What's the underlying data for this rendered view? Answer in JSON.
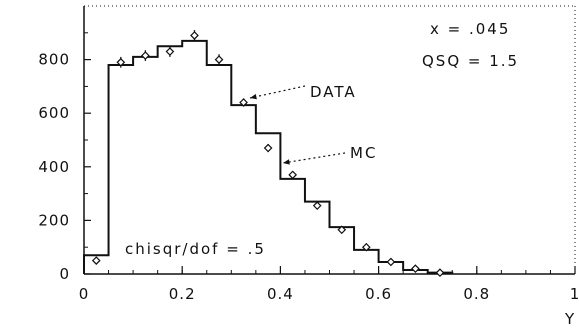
{
  "chart_data": {
    "type": "line",
    "title": "",
    "xlabel": "Y",
    "ylabel": "",
    "xlim": [
      0,
      1
    ],
    "ylim": [
      0,
      1000
    ],
    "x_ticks": [
      0,
      0.2,
      0.4,
      0.6,
      0.8,
      1
    ],
    "x_tick_labels": [
      "0",
      "0.2",
      "0.4",
      "0.6",
      "0.8",
      "1"
    ],
    "y_ticks": [
      0,
      200,
      400,
      600,
      800
    ],
    "y_tick_labels": [
      "0",
      "200",
      "400",
      "600",
      "800"
    ],
    "grid": false,
    "series": [
      {
        "name": "DATA",
        "style": "points",
        "x": [
          0.025,
          0.075,
          0.125,
          0.175,
          0.225,
          0.275,
          0.325,
          0.375,
          0.425,
          0.475,
          0.525,
          0.575,
          0.625,
          0.675,
          0.725
        ],
        "y": [
          50,
          790,
          815,
          830,
          890,
          800,
          640,
          470,
          370,
          255,
          165,
          100,
          45,
          20,
          5
        ],
        "yerr": [
          5,
          20,
          20,
          20,
          20,
          20,
          15,
          15,
          12,
          10,
          8,
          6,
          4,
          3,
          2
        ]
      },
      {
        "name": "MC",
        "style": "histogram",
        "bin_edges": [
          0,
          0.05,
          0.1,
          0.15,
          0.2,
          0.25,
          0.3,
          0.35,
          0.4,
          0.45,
          0.5,
          0.55,
          0.6,
          0.65,
          0.7,
          0.75
        ],
        "values": [
          70,
          780,
          810,
          850,
          870,
          780,
          630,
          525,
          355,
          270,
          175,
          90,
          45,
          15,
          5
        ]
      }
    ],
    "annotations": {
      "params_line1": "x = .045",
      "params_line2": "QSQ = 1.5",
      "data_label": "DATA",
      "mc_label": "MC",
      "fit_quality": "chisqr/dof = .5"
    },
    "colors": {
      "ink": "#111111",
      "background": "#ffffff"
    }
  }
}
